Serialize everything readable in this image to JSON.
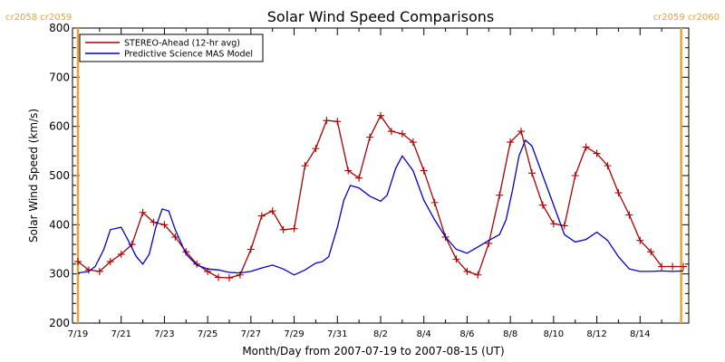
{
  "chart_data": {
    "type": "line",
    "title": "Solar Wind Speed Comparisons",
    "xlabel": "Month/Day from 2007-07-19 to 2007-08-15 (UT)",
    "ylabel": "Solar Wind Speed (km/s)",
    "ylim": [
      200,
      800
    ],
    "yticks": [
      200,
      300,
      400,
      500,
      600,
      700,
      800
    ],
    "xlim_days": [
      0,
      28
    ],
    "xticks": [
      {
        "day": 0,
        "label": "7/19"
      },
      {
        "day": 2,
        "label": "7/21"
      },
      {
        "day": 4,
        "label": "7/23"
      },
      {
        "day": 6,
        "label": "7/25"
      },
      {
        "day": 8,
        "label": "7/27"
      },
      {
        "day": 10,
        "label": "7/29"
      },
      {
        "day": 12,
        "label": "7/31"
      },
      {
        "day": 14,
        "label": "8/2"
      },
      {
        "day": 16,
        "label": "8/4"
      },
      {
        "day": 18,
        "label": "8/6"
      },
      {
        "day": 20,
        "label": "8/8"
      },
      {
        "day": 22,
        "label": "8/10"
      },
      {
        "day": 24,
        "label": "8/12"
      },
      {
        "day": 26,
        "label": "8/14"
      }
    ],
    "carrington_markers": [
      {
        "day": 0,
        "label": "cr2058 cr2059",
        "side": "left"
      },
      {
        "day": 27.9,
        "label": "cr2059 cr2060",
        "side": "right"
      }
    ],
    "marker_color": "#e8a23a",
    "legend_position": "top-left",
    "series": [
      {
        "name": "STEREO-Ahead (12-hr avg)",
        "color": "#aa0000",
        "marker": "plus",
        "x": [
          0,
          0.5,
          1,
          1.5,
          2,
          2.5,
          3,
          3.5,
          4,
          4.5,
          5,
          5.5,
          6,
          6.5,
          7,
          7.5,
          8,
          8.5,
          9,
          9.5,
          10,
          10.5,
          11,
          11.5,
          12,
          12.5,
          13,
          13.5,
          14,
          14.5,
          15,
          15.5,
          16,
          16.5,
          17,
          17.5,
          18,
          18.5,
          19,
          19.5,
          20,
          20.5,
          21,
          21.5,
          22,
          22.5,
          23,
          23.5,
          24,
          24.5,
          25,
          25.5,
          26,
          26.5,
          27,
          27.5,
          28
        ],
        "values": [
          325,
          308,
          305,
          325,
          340,
          360,
          425,
          405,
          400,
          375,
          345,
          320,
          305,
          293,
          292,
          298,
          350,
          418,
          428,
          390,
          392,
          520,
          555,
          612,
          610,
          510,
          495,
          578,
          622,
          590,
          585,
          568,
          510,
          445,
          375,
          330,
          305,
          298,
          362,
          460,
          568,
          590,
          505,
          440,
          402,
          398,
          500,
          558,
          545,
          520,
          465,
          420,
          368,
          345,
          315,
          315,
          315
        ]
      },
      {
        "name": "Predictive Science MAS Model",
        "color": "#0000cc",
        "marker": "none",
        "x": [
          0,
          0.5,
          0.8,
          1.2,
          1.5,
          2,
          2.3,
          2.7,
          3,
          3.3,
          3.6,
          3.9,
          4.2,
          4.5,
          5,
          5.5,
          6,
          6.5,
          7,
          7.5,
          8,
          8.5,
          9,
          9.5,
          10,
          10.5,
          11,
          11.3,
          11.6,
          12,
          12.3,
          12.6,
          13,
          13.5,
          14,
          14.3,
          14.7,
          15,
          15.5,
          16,
          16.5,
          17,
          17.5,
          18,
          18.5,
          19,
          19.5,
          19.8,
          20.1,
          20.4,
          20.7,
          21,
          21.5,
          22,
          22.5,
          23,
          23.5,
          24,
          24.5,
          25,
          25.5,
          26,
          26.5,
          27,
          27.5,
          28
        ],
        "values": [
          302,
          305,
          315,
          350,
          390,
          395,
          370,
          335,
          320,
          340,
          395,
          432,
          428,
          390,
          340,
          318,
          310,
          308,
          303,
          302,
          305,
          312,
          318,
          310,
          298,
          308,
          322,
          325,
          335,
          395,
          450,
          480,
          475,
          458,
          448,
          460,
          515,
          540,
          510,
          450,
          410,
          375,
          350,
          342,
          355,
          368,
          380,
          410,
          470,
          540,
          572,
          560,
          500,
          440,
          380,
          365,
          370,
          385,
          368,
          335,
          310,
          305,
          305,
          306,
          305,
          306
        ]
      }
    ]
  }
}
